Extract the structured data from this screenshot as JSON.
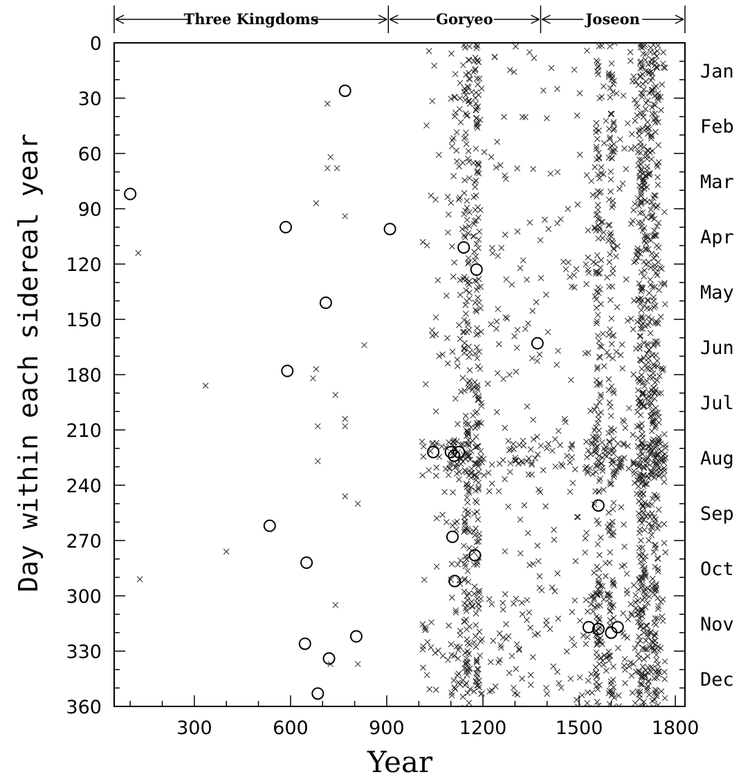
{
  "chart_data": {
    "type": "scatter",
    "xlabel": "Year",
    "ylabel": "Day within each sidereal year",
    "xlim": [
      50,
      1830
    ],
    "ylim": [
      360,
      0
    ],
    "xticks": [
      "300",
      "600",
      "900",
      "1200",
      "1500",
      "1800"
    ],
    "yticks": [
      "0",
      "30",
      "60",
      "90",
      "120",
      "150",
      "180",
      "210",
      "240",
      "270",
      "300",
      "330",
      "360"
    ],
    "month_labels": [
      "Jan",
      "Feb",
      "Mar",
      "Apr",
      "May",
      "Jun",
      "Jul",
      "Aug",
      "Sep",
      "Oct",
      "Nov",
      "Dec"
    ],
    "periods": [
      {
        "name": "Three Kingdoms",
        "start": 50,
        "end": 905
      },
      {
        "name": "Goryeo",
        "start": 905,
        "end": 1380
      },
      {
        "name": "Joseon",
        "start": 1380,
        "end": 1830
      }
    ],
    "marker_key": [
      "x",
      "o"
    ],
    "series": [
      {
        "marker": "o",
        "points": [
          [
            100,
            82
          ],
          [
            770,
            26
          ],
          [
            585,
            100
          ],
          [
            910,
            101
          ],
          [
            1140,
            111
          ],
          [
            1180,
            123
          ],
          [
            710,
            141
          ],
          [
            1370,
            163
          ],
          [
            590,
            178
          ],
          [
            1045,
            222
          ],
          [
            1100,
            222
          ],
          [
            1110,
            224
          ],
          [
            1125,
            222
          ],
          [
            1560,
            251
          ],
          [
            535,
            262
          ],
          [
            1105,
            268
          ],
          [
            1175,
            278
          ],
          [
            650,
            282
          ],
          [
            1112,
            292
          ],
          [
            1530,
            317
          ],
          [
            1560,
            318
          ],
          [
            1600,
            320
          ],
          [
            1620,
            317
          ],
          [
            805,
            322
          ],
          [
            645,
            326
          ],
          [
            720,
            334
          ],
          [
            685,
            353
          ]
        ]
      },
      {
        "marker": "x",
        "points": [
          [
            715,
            33
          ],
          [
            725,
            62
          ],
          [
            715,
            68
          ],
          [
            745,
            68
          ],
          [
            680,
            87
          ],
          [
            770,
            94
          ],
          [
            125,
            114
          ],
          [
            830,
            164
          ],
          [
            680,
            177
          ],
          [
            670,
            182
          ],
          [
            740,
            191
          ],
          [
            335,
            186
          ],
          [
            770,
            204
          ],
          [
            770,
            208
          ],
          [
            685,
            208
          ],
          [
            685,
            227
          ],
          [
            770,
            246
          ],
          [
            810,
            250
          ],
          [
            400,
            276
          ],
          [
            130,
            291
          ],
          [
            740,
            305
          ],
          [
            810,
            337
          ],
          [
            725,
            337
          ]
        ]
      }
    ],
    "dense_x_regions": [
      {
        "from": 1010,
        "to": 1380,
        "density": 0.6
      },
      {
        "from": 1100,
        "to": 1200,
        "density": 1.0
      },
      {
        "from": 1380,
        "to": 1520,
        "density": 0.45
      },
      {
        "from": 1520,
        "to": 1580,
        "density": 1.3
      },
      {
        "from": 1580,
        "to": 1660,
        "density": 0.9
      },
      {
        "from": 1660,
        "to": 1770,
        "density": 1.8
      }
    ]
  }
}
